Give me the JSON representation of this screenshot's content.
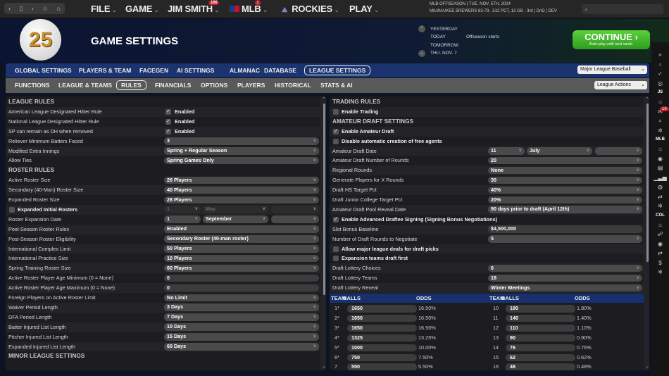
{
  "topbar": {
    "menus": [
      {
        "label": "FILE"
      },
      {
        "label": "GAME"
      },
      {
        "label": "JIM SMITH",
        "badge": "100"
      },
      {
        "label": "MLB",
        "badge": "!"
      },
      {
        "label": "ROCKIES"
      },
      {
        "label": "PLAY"
      }
    ],
    "status_line1": "MLB OFFSEASON  |  TUE. NOV. 5TH, 2024",
    "status_line2": "MILWAUKEE BREWERS   83-79, .512 PCT, 13 GB - 3rd | DnD | DEV",
    "search_placeholder": ""
  },
  "header": {
    "logo_text": "25",
    "title": "GAME SETTINGS",
    "calendar": [
      {
        "day": "YESTERDAY",
        "event": ""
      },
      {
        "day": "TODAY",
        "event": "Offseason starts"
      },
      {
        "day": "TOMORROW",
        "event": ""
      },
      {
        "day": "THU. NOV. 7",
        "event": ""
      }
    ],
    "continue_label": "CONTINUE",
    "continue_sub": "Auto-play until next week."
  },
  "tabs": {
    "main": [
      "GLOBAL SETTINGS",
      "PLAYERS & TEAM",
      "FACEGEN",
      "AI SETTINGS",
      "ALMANAC",
      "DATABASE",
      "LEAGUE SETTINGS"
    ],
    "main_active": "LEAGUE SETTINGS",
    "sub": [
      "FUNCTIONS",
      "LEAGUE & TEAMS",
      "RULES",
      "FINANCIALS",
      "OPTIONS",
      "PLAYERS",
      "HISTORICAL",
      "STATS & AI"
    ],
    "sub_active": "RULES",
    "league_select": "Major League Baseball",
    "league_actions": "League Actions"
  },
  "left": [
    {
      "t": "head",
      "label": "LEAGUE RULES"
    },
    {
      "t": "check",
      "label": "American League Designated Hitter Rule",
      "checked": true,
      "value": "Enabled"
    },
    {
      "t": "check",
      "label": "National League Designated Hitter Rule",
      "checked": true,
      "value": "Enabled"
    },
    {
      "t": "check",
      "label": "SP can remain as DH when removed",
      "checked": true,
      "value": "Enabled"
    },
    {
      "t": "select",
      "label": "Reliever Minimum Batters Faced",
      "value": "3"
    },
    {
      "t": "select",
      "label": "Modified Extra Innings",
      "value": "Spring + Regular Season"
    },
    {
      "t": "select",
      "label": "Allow Ties",
      "value": "Spring Games Only"
    },
    {
      "t": "head",
      "label": "ROSTER RULES"
    },
    {
      "t": "select",
      "label": "Active Roster Size",
      "value": "26 Players"
    },
    {
      "t": "select",
      "label": "Secondary (40-Man) Roster Size",
      "value": "40 Players"
    },
    {
      "t": "select",
      "label": "Expanded Roster Size",
      "value": "28 Players"
    },
    {
      "t": "checkdate",
      "label": "Expanded Initial Rosters",
      "checked": false,
      "day": "1",
      "month": "May",
      "year": "",
      "disabled": true
    },
    {
      "t": "date",
      "label": "Roster Expansion Date",
      "day": "1",
      "month": "September",
      "year": ""
    },
    {
      "t": "select",
      "label": "Post-Season Roster Rules",
      "value": "Enabled"
    },
    {
      "t": "select",
      "label": "Post-Season Roster Eligibility",
      "value": "Secondary Roster (40-man roster)"
    },
    {
      "t": "select",
      "label": "International Complex Limit",
      "value": "50 Players"
    },
    {
      "t": "select",
      "label": "International Practice Size",
      "value": "10 Players"
    },
    {
      "t": "select",
      "label": "Spring Training Roster Size",
      "value": "60 Players"
    },
    {
      "t": "input",
      "label": "Active Roster Player Age Minimum (0 = None)",
      "value": "0"
    },
    {
      "t": "input",
      "label": "Active Roster Player Age Maximum (0 = None)",
      "value": "0"
    },
    {
      "t": "select",
      "label": "Foreign Players on Active Roster Limit",
      "value": "No Limit"
    },
    {
      "t": "select",
      "label": "Waiver Period Length",
      "value": "3 Days"
    },
    {
      "t": "select",
      "label": "DFA Period Length",
      "value": "7 Days"
    },
    {
      "t": "select",
      "label": "Batter Injured List Length",
      "value": "10 Days"
    },
    {
      "t": "select",
      "label": "Pitcher Injured List Length",
      "value": "15 Days"
    },
    {
      "t": "select",
      "label": "Expanded Injured List Length",
      "value": "60 Days"
    },
    {
      "t": "head",
      "label": "MINOR LEAGUE SETTINGS"
    }
  ],
  "right": [
    {
      "t": "head",
      "label": "TRADING RULES"
    },
    {
      "t": "checkonly",
      "label": "Enable Trading",
      "checked": false
    },
    {
      "t": "head",
      "label": "AMATEUR DRAFT SETTINGS"
    },
    {
      "t": "checkonly",
      "label": "Enable Amateur Draft",
      "checked": true
    },
    {
      "t": "checkonly",
      "label": "Disable automatic creation of free agents",
      "checked": false
    },
    {
      "t": "date",
      "label": "Amateur Draft Date",
      "day": "11",
      "month": "July",
      "year": ""
    },
    {
      "t": "select",
      "label": "Amateur Draft Number of Rounds",
      "value": "20"
    },
    {
      "t": "select",
      "label": "Regional Rounds",
      "value": "None"
    },
    {
      "t": "select",
      "label": "Generate Players for X Rounds",
      "value": "30"
    },
    {
      "t": "select",
      "label": "Draft HS Target Pct",
      "value": "40%"
    },
    {
      "t": "select",
      "label": "Draft Junior College Target Pct",
      "value": "20%"
    },
    {
      "t": "select",
      "label": "Amateur Draft Pool Reveal Date",
      "value": "90 days prior to draft (April 12th)"
    },
    {
      "t": "checkonly",
      "label": "Enable Advanced Draftee Signing (Signing Bonus Negotiations)",
      "checked": true
    },
    {
      "t": "input",
      "label": "Slot Bonus Baseline",
      "value": "$4,500,000"
    },
    {
      "t": "select",
      "label": "Number of Draft Rounds to Negotiate",
      "value": "5"
    },
    {
      "t": "checkonly",
      "label": "Allow major league deals for draft picks",
      "checked": false
    },
    {
      "t": "checkonly",
      "label": "Expansion teams draft first",
      "checked": false
    },
    {
      "t": "select",
      "label": "Draft Lottery Choices",
      "value": "6"
    },
    {
      "t": "select",
      "label": "Draft Lottery Teams",
      "value": "18"
    },
    {
      "t": "select",
      "label": "Draft Lottery Reveal",
      "value": "Winter Meetings"
    }
  ],
  "lottery": {
    "headers": [
      "TEAM",
      "BALLS",
      "ODDS"
    ],
    "left": [
      [
        "1*",
        "1650",
        "16.50%"
      ],
      [
        "2*",
        "1650",
        "16.50%"
      ],
      [
        "3*",
        "1650",
        "16.50%"
      ],
      [
        "4*",
        "1325",
        "13.25%"
      ],
      [
        "5*",
        "1000",
        "10.00%"
      ],
      [
        "6*",
        "750",
        "7.50%"
      ],
      [
        "7",
        "550",
        "5.50%"
      ]
    ],
    "right": [
      [
        "10",
        "180",
        "1.80%"
      ],
      [
        "11",
        "140",
        "1.40%"
      ],
      [
        "12",
        "110",
        "1.10%"
      ],
      [
        "13",
        "90",
        "0.90%"
      ],
      [
        "14",
        "76",
        "0.76%"
      ],
      [
        "15",
        "62",
        "0.62%"
      ],
      [
        "16",
        "48",
        "0.48%"
      ]
    ]
  },
  "sidebar": {
    "groups": [
      {
        "label": "",
        "icons": [
          "expand-icon",
          "lightbulb-icon",
          "check-icon",
          "globe-icon"
        ]
      },
      {
        "label": "JS",
        "icons": [
          "home-icon",
          "mail-icon",
          "search-icon",
          "gear-icon"
        ],
        "badge": "10"
      },
      {
        "label": "MLB",
        "icons": [
          "home-icon",
          "location-icon",
          "card-icon",
          "bar-chart-icon",
          "baseball-icon",
          "transactions-icon",
          "gear-icon"
        ]
      },
      {
        "label": "COL",
        "icons": [
          "home-icon",
          "roster-icon",
          "location-icon",
          "transactions-icon",
          "dollar-icon",
          "gear-icon"
        ]
      }
    ]
  },
  "colors": {
    "nav_blue": "#1b3470",
    "continue_green": "#3cb82a",
    "badge_red": "#d01d2a"
  }
}
